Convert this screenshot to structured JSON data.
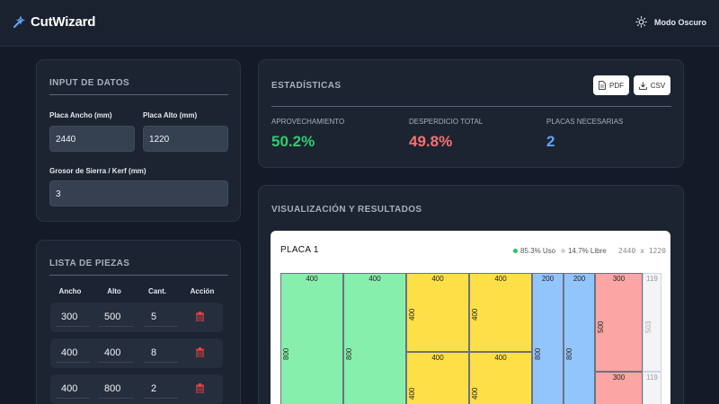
{
  "app": {
    "title": "CutWizard",
    "theme_label": "Modo Oscuro"
  },
  "input_card": {
    "title": "INPUT DE DATOS",
    "width_label": "Placa Ancho (mm)",
    "height_label": "Placa Alto (mm)",
    "kerf_label": "Grosor de Sierra / Kerf (mm)",
    "width_value": "2440",
    "height_value": "1220",
    "kerf_value": "3"
  },
  "pieces_card": {
    "title": "LISTA DE PIEZAS",
    "headers": [
      "Ancho",
      "Alto",
      "Cant.",
      "Acción"
    ],
    "rows": [
      {
        "ancho": "300",
        "alto": "500",
        "cant": "5"
      },
      {
        "ancho": "400",
        "alto": "400",
        "cant": "8"
      },
      {
        "ancho": "400",
        "alto": "800",
        "cant": "2"
      }
    ]
  },
  "stats_card": {
    "title": "ESTADÍSTICAS",
    "pdf_label": "PDF",
    "csv_label": "CSV",
    "aprovechamiento_label": "APROVECHAMIENTO",
    "aprovechamiento_value": "50.2%",
    "desperdicio_label": "DESPERDICIO TOTAL",
    "desperdicio_value": "49.8%",
    "placas_label": "PLACAS NECESARIAS",
    "placas_value": "2",
    "colors": {
      "green": "#2ecc71",
      "red": "#f87171",
      "blue": "#60a5fa"
    }
  },
  "viz_card": {
    "title": "VISUALIZACIÓN Y RESULTADOS",
    "board_title": "PLACA 1",
    "uso_label": "85.3% Uso",
    "libre_label": "14.7% Libre",
    "dims_label": "2440 x 1220",
    "piece_labels": {
      "p400": "400",
      "p800": "800",
      "p200": "200",
      "p300": "300",
      "p500": "500",
      "p119": "119",
      "p503": "503"
    }
  }
}
